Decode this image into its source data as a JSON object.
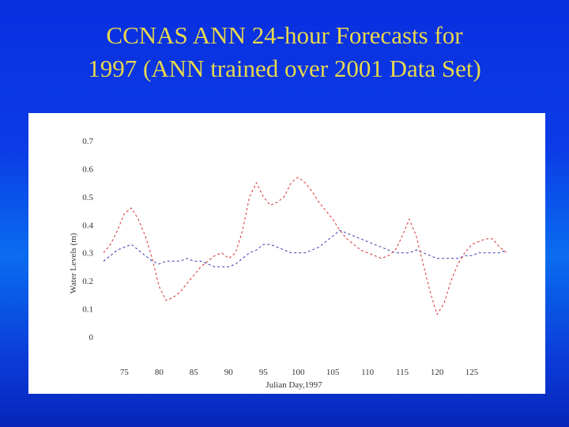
{
  "slide": {
    "title_line1": "CCNAS ANN 24-hour Forecasts for",
    "title_line2": "1997 (ANN trained over 2001 Data Set)"
  },
  "colors": {
    "background": "#0b3ce6",
    "title": "#e8d84c",
    "observed": "#3a3ab0",
    "forecast": "#d83030"
  },
  "chart_data": {
    "type": "line",
    "title": "",
    "xlabel": "Julian Day,1997",
    "ylabel": "Water Levels (m)",
    "xlim": [
      72,
      130
    ],
    "ylim": [
      0,
      0.7
    ],
    "xticks": [
      "75",
      "80",
      "85",
      "90",
      "95",
      "100",
      "105",
      "110",
      "115",
      "120",
      "125"
    ],
    "yticks": [
      "0",
      "0.1",
      "0.2",
      "0.3",
      "0.4",
      "0.5",
      "0.6",
      "0.7"
    ],
    "line_style": "dashed",
    "grid": false,
    "series": [
      {
        "color": "#3a3ab0",
        "x": [
          72,
          73,
          74,
          75,
          76,
          77,
          78,
          79,
          80,
          81,
          82,
          83,
          84,
          85,
          86,
          87,
          88,
          89,
          90,
          91,
          92,
          93,
          94,
          95,
          96,
          97,
          98,
          99,
          100,
          101,
          102,
          103,
          104,
          105,
          106,
          107,
          108,
          109,
          110,
          111,
          112,
          113,
          114,
          115,
          116,
          117,
          118,
          119,
          120,
          121,
          122,
          123,
          124,
          125,
          126,
          127,
          128,
          129,
          130
        ],
        "y": [
          0.27,
          0.29,
          0.31,
          0.32,
          0.33,
          0.31,
          0.29,
          0.27,
          0.26,
          0.27,
          0.27,
          0.27,
          0.28,
          0.27,
          0.27,
          0.26,
          0.25,
          0.25,
          0.25,
          0.26,
          0.28,
          0.3,
          0.31,
          0.33,
          0.33,
          0.32,
          0.31,
          0.3,
          0.3,
          0.3,
          0.31,
          0.32,
          0.34,
          0.36,
          0.38,
          0.37,
          0.36,
          0.35,
          0.34,
          0.33,
          0.32,
          0.31,
          0.3,
          0.3,
          0.3,
          0.31,
          0.3,
          0.29,
          0.28,
          0.28,
          0.28,
          0.28,
          0.29,
          0.29,
          0.3,
          0.3,
          0.3,
          0.3,
          0.31
        ]
      },
      {
        "color": "#d83030",
        "x": [
          72,
          73,
          74,
          75,
          76,
          77,
          78,
          79,
          80,
          81,
          82,
          83,
          84,
          85,
          86,
          87,
          88,
          89,
          90,
          91,
          92,
          93,
          94,
          95,
          96,
          97,
          98,
          99,
          100,
          101,
          102,
          103,
          104,
          105,
          106,
          107,
          108,
          109,
          110,
          111,
          112,
          113,
          114,
          115,
          116,
          117,
          118,
          119,
          120,
          121,
          122,
          123,
          124,
          125,
          126,
          127,
          128,
          129,
          130
        ],
        "y": [
          0.3,
          0.33,
          0.38,
          0.44,
          0.46,
          0.42,
          0.36,
          0.28,
          0.18,
          0.13,
          0.14,
          0.16,
          0.19,
          0.22,
          0.25,
          0.27,
          0.29,
          0.3,
          0.28,
          0.3,
          0.38,
          0.5,
          0.55,
          0.5,
          0.47,
          0.48,
          0.5,
          0.55,
          0.57,
          0.55,
          0.52,
          0.48,
          0.45,
          0.42,
          0.38,
          0.35,
          0.33,
          0.31,
          0.3,
          0.29,
          0.28,
          0.29,
          0.31,
          0.36,
          0.42,
          0.36,
          0.26,
          0.16,
          0.08,
          0.12,
          0.2,
          0.26,
          0.3,
          0.33,
          0.34,
          0.35,
          0.35,
          0.32,
          0.3
        ]
      }
    ]
  }
}
